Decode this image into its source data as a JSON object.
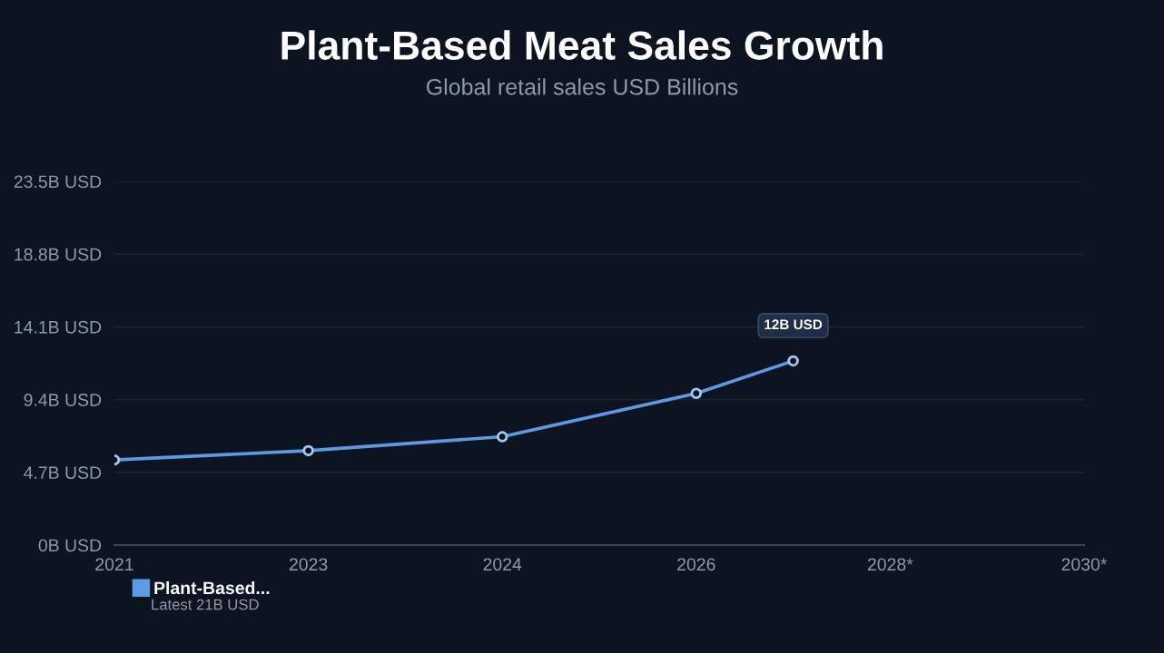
{
  "chart_data": {
    "type": "line",
    "title": "Plant-Based Meat Sales Growth",
    "subtitle": "Global retail sales USD Billions",
    "categories": [
      "2021",
      null,
      "2023",
      null,
      "2024",
      null,
      "2026",
      null,
      "2028*",
      null,
      "2030*"
    ],
    "series": [
      {
        "name": "Plant-Based...",
        "color": "#5b9be6",
        "values": [
          5.5,
          null,
          6.1,
          null,
          7.0,
          null,
          9.8,
          11.9,
          null,
          null,
          null
        ]
      }
    ],
    "ylim": [
      0,
      23.5
    ],
    "yticks": [
      {
        "value": 0,
        "label": "0B USD"
      },
      {
        "value": 4.7,
        "label": "4.7B USD"
      },
      {
        "value": 9.4,
        "label": "9.4B USD"
      },
      {
        "value": 14.1,
        "label": "14.1B USD"
      },
      {
        "value": 18.8,
        "label": "18.8B USD"
      },
      {
        "value": 23.5,
        "label": "23.5B USD"
      }
    ],
    "annotations": [
      {
        "text": "12B USD",
        "y": 11.9
      },
      "Latest 21B USD"
    ],
    "grid": "y",
    "legend": "bottom left",
    "marker": "circle",
    "line_style": "solid"
  }
}
